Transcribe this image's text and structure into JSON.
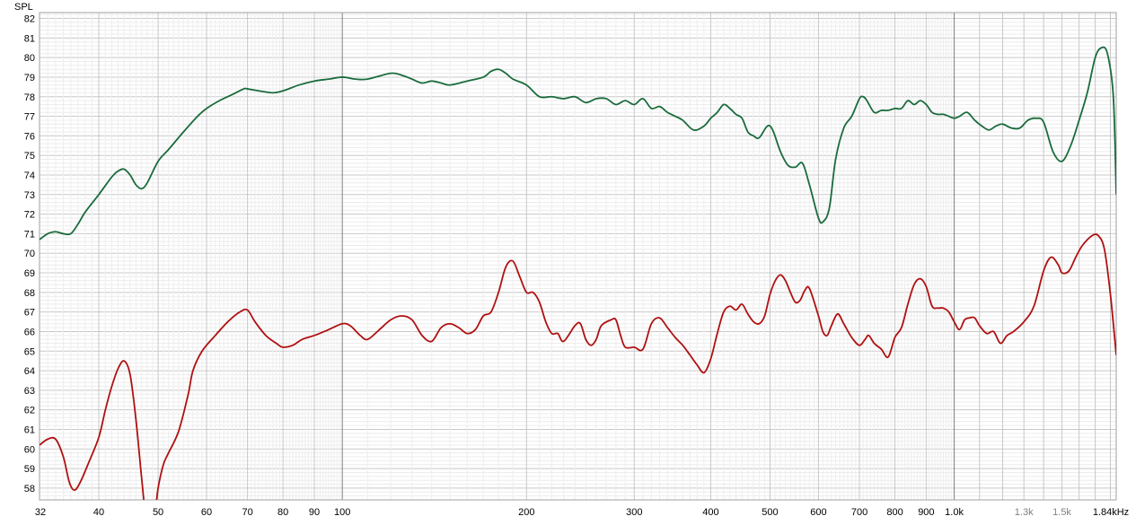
{
  "chart_data": {
    "type": "line",
    "ylabel": "SPL",
    "x_scale": "log",
    "xlim": [
      32,
      1840
    ],
    "ylim": [
      57.4,
      82.3
    ],
    "grid": true,
    "y_ticks": [
      58,
      59,
      60,
      61,
      62,
      63,
      64,
      65,
      66,
      67,
      68,
      69,
      70,
      71,
      72,
      73,
      74,
      75,
      76,
      77,
      78,
      79,
      80,
      81,
      82
    ],
    "x_ticks": [
      {
        "value": 32,
        "label": "32"
      },
      {
        "value": 40,
        "label": "40"
      },
      {
        "value": 50,
        "label": "50"
      },
      {
        "value": 60,
        "label": "60"
      },
      {
        "value": 70,
        "label": "70"
      },
      {
        "value": 80,
        "label": "80"
      },
      {
        "value": 90,
        "label": "90"
      },
      {
        "value": 100,
        "label": "100"
      },
      {
        "value": 200,
        "label": "200"
      },
      {
        "value": 300,
        "label": "300"
      },
      {
        "value": 400,
        "label": "400"
      },
      {
        "value": 500,
        "label": "500"
      },
      {
        "value": 600,
        "label": "600"
      },
      {
        "value": 700,
        "label": "700"
      },
      {
        "value": 800,
        "label": "800"
      },
      {
        "value": 900,
        "label": "900"
      },
      {
        "value": 1000,
        "label": "1.0k"
      },
      {
        "value": 1300,
        "label": "1.3k"
      },
      {
        "value": 1500,
        "label": "1.5k"
      },
      {
        "value": 1840,
        "label": "1.84kHz"
      }
    ],
    "series": [
      {
        "color": "#1a6b3c",
        "points": [
          [
            32,
            70.7
          ],
          [
            33,
            71.0
          ],
          [
            34,
            71.1
          ],
          [
            35,
            71.0
          ],
          [
            36,
            71.0
          ],
          [
            37,
            71.5
          ],
          [
            38,
            72.1
          ],
          [
            40,
            73.0
          ],
          [
            42,
            73.9
          ],
          [
            43,
            74.2
          ],
          [
            44,
            74.3
          ],
          [
            45,
            74.0
          ],
          [
            46,
            73.5
          ],
          [
            47,
            73.3
          ],
          [
            48,
            73.6
          ],
          [
            50,
            74.7
          ],
          [
            52,
            75.3
          ],
          [
            55,
            76.2
          ],
          [
            58,
            77.0
          ],
          [
            60,
            77.4
          ],
          [
            63,
            77.8
          ],
          [
            66,
            78.1
          ],
          [
            69,
            78.4
          ],
          [
            70,
            78.4
          ],
          [
            73,
            78.3
          ],
          [
            77,
            78.2
          ],
          [
            80,
            78.3
          ],
          [
            85,
            78.6
          ],
          [
            90,
            78.8
          ],
          [
            95,
            78.9
          ],
          [
            100,
            79.0
          ],
          [
            105,
            78.9
          ],
          [
            110,
            78.9
          ],
          [
            120,
            79.2
          ],
          [
            125,
            79.1
          ],
          [
            130,
            78.9
          ],
          [
            135,
            78.7
          ],
          [
            140,
            78.8
          ],
          [
            145,
            78.7
          ],
          [
            150,
            78.6
          ],
          [
            160,
            78.8
          ],
          [
            170,
            79.0
          ],
          [
            175,
            79.3
          ],
          [
            180,
            79.4
          ],
          [
            185,
            79.2
          ],
          [
            190,
            78.9
          ],
          [
            200,
            78.6
          ],
          [
            210,
            78.0
          ],
          [
            220,
            78.0
          ],
          [
            230,
            77.9
          ],
          [
            240,
            78.0
          ],
          [
            250,
            77.7
          ],
          [
            260,
            77.9
          ],
          [
            270,
            77.9
          ],
          [
            280,
            77.6
          ],
          [
            290,
            77.8
          ],
          [
            300,
            77.6
          ],
          [
            310,
            77.9
          ],
          [
            320,
            77.4
          ],
          [
            330,
            77.5
          ],
          [
            340,
            77.2
          ],
          [
            350,
            77.0
          ],
          [
            360,
            76.8
          ],
          [
            375,
            76.3
          ],
          [
            390,
            76.5
          ],
          [
            400,
            76.9
          ],
          [
            410,
            77.2
          ],
          [
            420,
            77.6
          ],
          [
            430,
            77.4
          ],
          [
            440,
            77.1
          ],
          [
            450,
            76.9
          ],
          [
            460,
            76.2
          ],
          [
            470,
            76.0
          ],
          [
            480,
            75.9
          ],
          [
            495,
            76.5
          ],
          [
            505,
            76.3
          ],
          [
            520,
            75.2
          ],
          [
            535,
            74.5
          ],
          [
            550,
            74.4
          ],
          [
            565,
            74.6
          ],
          [
            580,
            73.5
          ],
          [
            600,
            71.8
          ],
          [
            610,
            71.6
          ],
          [
            625,
            72.3
          ],
          [
            640,
            74.8
          ],
          [
            660,
            76.4
          ],
          [
            680,
            77.0
          ],
          [
            700,
            77.9
          ],
          [
            710,
            78.0
          ],
          [
            720,
            77.8
          ],
          [
            740,
            77.2
          ],
          [
            760,
            77.3
          ],
          [
            780,
            77.3
          ],
          [
            800,
            77.4
          ],
          [
            820,
            77.4
          ],
          [
            840,
            77.8
          ],
          [
            860,
            77.6
          ],
          [
            880,
            77.8
          ],
          [
            900,
            77.6
          ],
          [
            920,
            77.2
          ],
          [
            940,
            77.1
          ],
          [
            960,
            77.1
          ],
          [
            980,
            77.0
          ],
          [
            1000,
            76.9
          ],
          [
            1020,
            77.0
          ],
          [
            1050,
            77.2
          ],
          [
            1080,
            76.8
          ],
          [
            1110,
            76.5
          ],
          [
            1140,
            76.3
          ],
          [
            1170,
            76.5
          ],
          [
            1200,
            76.6
          ],
          [
            1240,
            76.4
          ],
          [
            1280,
            76.4
          ],
          [
            1320,
            76.8
          ],
          [
            1360,
            76.9
          ],
          [
            1400,
            76.7
          ],
          [
            1450,
            75.2
          ],
          [
            1500,
            74.7
          ],
          [
            1550,
            75.5
          ],
          [
            1600,
            76.8
          ],
          [
            1650,
            78.2
          ],
          [
            1700,
            80.0
          ],
          [
            1740,
            80.5
          ],
          [
            1780,
            80.2
          ],
          [
            1820,
            78.0
          ],
          [
            1840,
            73.0
          ]
        ]
      },
      {
        "color": "#b01010",
        "points": [
          [
            32,
            60.2
          ],
          [
            33,
            60.5
          ],
          [
            34,
            60.5
          ],
          [
            35,
            59.6
          ],
          [
            35.8,
            58.3
          ],
          [
            36.5,
            57.9
          ],
          [
            37.3,
            58.3
          ],
          [
            38.5,
            59.3
          ],
          [
            40,
            60.6
          ],
          [
            41,
            62.0
          ],
          [
            42,
            63.2
          ],
          [
            43,
            64.1
          ],
          [
            44,
            64.5
          ],
          [
            45,
            63.8
          ],
          [
            46,
            61.5
          ],
          [
            47,
            58.5
          ],
          [
            47.8,
            56.5
          ],
          [
            49,
            56.0
          ],
          [
            50,
            58.0
          ],
          [
            51,
            59.2
          ],
          [
            52,
            59.8
          ],
          [
            54,
            60.9
          ],
          [
            56,
            62.8
          ],
          [
            57,
            64.0
          ],
          [
            59,
            65.0
          ],
          [
            62,
            65.8
          ],
          [
            65,
            66.5
          ],
          [
            68,
            67.0
          ],
          [
            70,
            67.1
          ],
          [
            72,
            66.5
          ],
          [
            75,
            65.8
          ],
          [
            78,
            65.4
          ],
          [
            80,
            65.2
          ],
          [
            83,
            65.3
          ],
          [
            86,
            65.6
          ],
          [
            90,
            65.8
          ],
          [
            95,
            66.1
          ],
          [
            100,
            66.4
          ],
          [
            103,
            66.3
          ],
          [
            107,
            65.8
          ],
          [
            110,
            65.6
          ],
          [
            115,
            66.1
          ],
          [
            120,
            66.6
          ],
          [
            125,
            66.8
          ],
          [
            130,
            66.6
          ],
          [
            135,
            65.8
          ],
          [
            140,
            65.5
          ],
          [
            145,
            66.2
          ],
          [
            150,
            66.4
          ],
          [
            155,
            66.2
          ],
          [
            160,
            65.9
          ],
          [
            165,
            66.1
          ],
          [
            170,
            66.8
          ],
          [
            175,
            67.0
          ],
          [
            180,
            68.0
          ],
          [
            185,
            69.3
          ],
          [
            190,
            69.6
          ],
          [
            195,
            68.8
          ],
          [
            200,
            68.0
          ],
          [
            205,
            68.0
          ],
          [
            210,
            67.5
          ],
          [
            215,
            66.5
          ],
          [
            220,
            65.9
          ],
          [
            225,
            65.9
          ],
          [
            230,
            65.5
          ],
          [
            240,
            66.3
          ],
          [
            245,
            66.4
          ],
          [
            250,
            65.6
          ],
          [
            255,
            65.3
          ],
          [
            260,
            65.6
          ],
          [
            265,
            66.3
          ],
          [
            275,
            66.6
          ],
          [
            280,
            66.6
          ],
          [
            285,
            65.8
          ],
          [
            290,
            65.2
          ],
          [
            300,
            65.2
          ],
          [
            310,
            65.1
          ],
          [
            320,
            66.4
          ],
          [
            330,
            66.7
          ],
          [
            340,
            66.2
          ],
          [
            350,
            65.7
          ],
          [
            360,
            65.3
          ],
          [
            370,
            64.8
          ],
          [
            380,
            64.3
          ],
          [
            390,
            63.9
          ],
          [
            400,
            64.6
          ],
          [
            410,
            65.9
          ],
          [
            420,
            67.0
          ],
          [
            430,
            67.3
          ],
          [
            440,
            67.1
          ],
          [
            450,
            67.4
          ],
          [
            460,
            66.9
          ],
          [
            470,
            66.5
          ],
          [
            480,
            66.4
          ],
          [
            490,
            66.8
          ],
          [
            500,
            67.9
          ],
          [
            510,
            68.6
          ],
          [
            520,
            68.9
          ],
          [
            530,
            68.6
          ],
          [
            540,
            68.0
          ],
          [
            550,
            67.5
          ],
          [
            560,
            67.6
          ],
          [
            570,
            68.1
          ],
          [
            580,
            68.2
          ],
          [
            600,
            66.8
          ],
          [
            610,
            66.0
          ],
          [
            620,
            65.8
          ],
          [
            630,
            66.3
          ],
          [
            645,
            66.9
          ],
          [
            660,
            66.4
          ],
          [
            680,
            65.7
          ],
          [
            700,
            65.3
          ],
          [
            715,
            65.6
          ],
          [
            725,
            65.8
          ],
          [
            740,
            65.4
          ],
          [
            760,
            65.1
          ],
          [
            780,
            64.7
          ],
          [
            800,
            65.7
          ],
          [
            820,
            66.2
          ],
          [
            840,
            67.4
          ],
          [
            860,
            68.4
          ],
          [
            880,
            68.7
          ],
          [
            900,
            68.3
          ],
          [
            920,
            67.3
          ],
          [
            940,
            67.2
          ],
          [
            960,
            67.2
          ],
          [
            980,
            67.0
          ],
          [
            1000,
            66.5
          ],
          [
            1020,
            66.1
          ],
          [
            1040,
            66.6
          ],
          [
            1060,
            66.7
          ],
          [
            1080,
            66.7
          ],
          [
            1100,
            66.3
          ],
          [
            1130,
            65.9
          ],
          [
            1160,
            66.0
          ],
          [
            1190,
            65.4
          ],
          [
            1220,
            65.8
          ],
          [
            1250,
            66.0
          ],
          [
            1300,
            66.5
          ],
          [
            1350,
            67.3
          ],
          [
            1400,
            69.1
          ],
          [
            1440,
            69.8
          ],
          [
            1480,
            69.4
          ],
          [
            1500,
            69.0
          ],
          [
            1540,
            69.1
          ],
          [
            1580,
            69.8
          ],
          [
            1620,
            70.4
          ],
          [
            1680,
            70.9
          ],
          [
            1720,
            70.9
          ],
          [
            1760,
            70.2
          ],
          [
            1800,
            67.9
          ],
          [
            1840,
            64.8
          ]
        ]
      }
    ]
  }
}
